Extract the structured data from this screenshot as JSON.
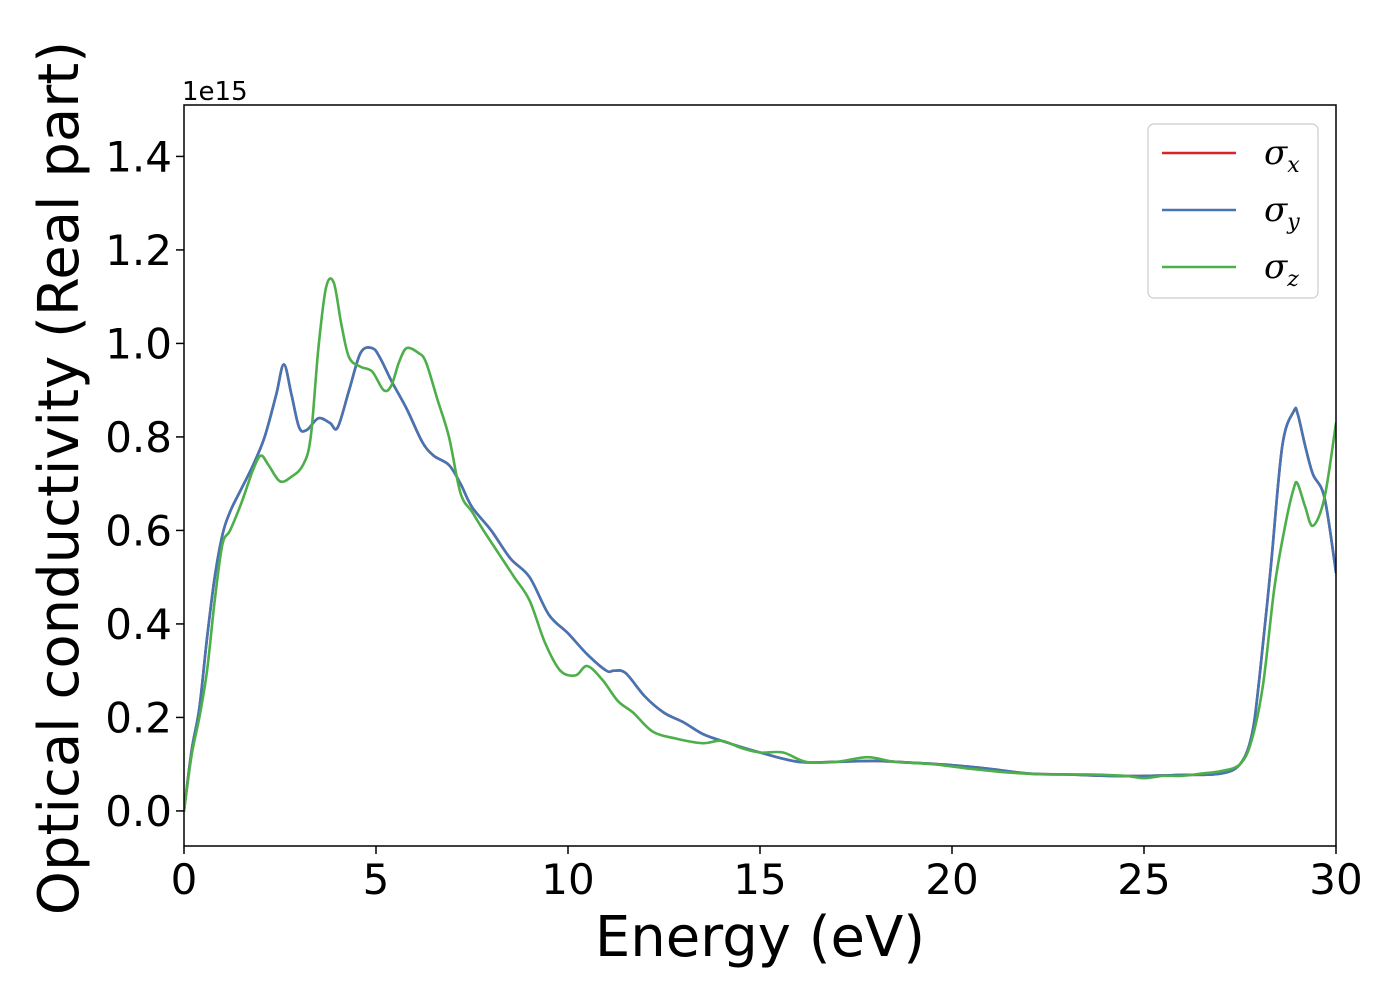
{
  "chart_data": {
    "type": "line",
    "xlabel": "Energy (eV)",
    "ylabel": "Optical conductivity (Real part)",
    "y_offset_text": "1e15",
    "xlim": [
      0,
      30
    ],
    "ylim": [
      -0.075,
      1.51
    ],
    "x_ticks": [
      0,
      5,
      10,
      15,
      20,
      25,
      30
    ],
    "x_tick_labels": [
      "0",
      "5",
      "10",
      "15",
      "20",
      "25",
      "30"
    ],
    "y_ticks": [
      0.0,
      0.2,
      0.4,
      0.6,
      0.8,
      1.0,
      1.2,
      1.4
    ],
    "y_tick_labels": [
      "0.0",
      "0.2",
      "0.4",
      "0.6",
      "0.8",
      "1.0",
      "1.2",
      "1.4"
    ],
    "grid": false,
    "legend_position": "top-right",
    "series": [
      {
        "name": "σx",
        "symbol": "σ",
        "subscript": "x",
        "color": "#d62728",
        "x": [
          0,
          0.2,
          0.4,
          0.6,
          0.8,
          1.0,
          1.2,
          1.5,
          1.8,
          2.1,
          2.4,
          2.6,
          2.8,
          3.0,
          3.2,
          3.5,
          3.8,
          4.0,
          4.3,
          4.6,
          4.9,
          5.1,
          5.4,
          5.8,
          6.2,
          6.5,
          6.9,
          7.2,
          7.5,
          8.0,
          8.5,
          9.0,
          9.5,
          10.0,
          10.5,
          11.0,
          11.2,
          11.5,
          12.0,
          12.5,
          13.0,
          13.5,
          14.0,
          15.0,
          16.0,
          17.0,
          18.0,
          19.0,
          20.0,
          21.0,
          22.0,
          23.0,
          24.0,
          25.0,
          26.0,
          27.0,
          27.5,
          27.8,
          28.0,
          28.3,
          28.6,
          28.9,
          29.0,
          29.2,
          29.4,
          29.7,
          30.0
        ],
        "y": [
          0.0,
          0.13,
          0.22,
          0.37,
          0.5,
          0.59,
          0.64,
          0.69,
          0.74,
          0.8,
          0.89,
          0.955,
          0.89,
          0.82,
          0.815,
          0.84,
          0.83,
          0.82,
          0.9,
          0.98,
          0.99,
          0.97,
          0.92,
          0.86,
          0.79,
          0.76,
          0.74,
          0.7,
          0.65,
          0.6,
          0.54,
          0.5,
          0.42,
          0.38,
          0.335,
          0.3,
          0.3,
          0.295,
          0.245,
          0.21,
          0.19,
          0.165,
          0.15,
          0.125,
          0.105,
          0.105,
          0.107,
          0.103,
          0.098,
          0.09,
          0.08,
          0.078,
          0.075,
          0.075,
          0.077,
          0.08,
          0.1,
          0.16,
          0.28,
          0.52,
          0.78,
          0.855,
          0.85,
          0.78,
          0.72,
          0.67,
          0.51
        ]
      },
      {
        "name": "σy",
        "symbol": "σ",
        "subscript": "y",
        "color": "#4575b4",
        "x": [
          0,
          0.2,
          0.4,
          0.6,
          0.8,
          1.0,
          1.2,
          1.5,
          1.8,
          2.1,
          2.4,
          2.6,
          2.8,
          3.0,
          3.2,
          3.5,
          3.8,
          4.0,
          4.3,
          4.6,
          4.9,
          5.1,
          5.4,
          5.8,
          6.2,
          6.5,
          6.9,
          7.2,
          7.5,
          8.0,
          8.5,
          9.0,
          9.5,
          10.0,
          10.5,
          11.0,
          11.2,
          11.5,
          12.0,
          12.5,
          13.0,
          13.5,
          14.0,
          15.0,
          16.0,
          17.0,
          18.0,
          19.0,
          20.0,
          21.0,
          22.0,
          23.0,
          24.0,
          25.0,
          26.0,
          27.0,
          27.5,
          27.8,
          28.0,
          28.3,
          28.6,
          28.9,
          29.0,
          29.2,
          29.4,
          29.7,
          30.0
        ],
        "y": [
          0.0,
          0.13,
          0.22,
          0.37,
          0.5,
          0.59,
          0.64,
          0.69,
          0.74,
          0.8,
          0.89,
          0.955,
          0.89,
          0.82,
          0.815,
          0.84,
          0.83,
          0.82,
          0.9,
          0.98,
          0.99,
          0.97,
          0.92,
          0.86,
          0.79,
          0.76,
          0.74,
          0.7,
          0.65,
          0.6,
          0.54,
          0.5,
          0.42,
          0.38,
          0.335,
          0.3,
          0.3,
          0.295,
          0.245,
          0.21,
          0.19,
          0.165,
          0.15,
          0.125,
          0.105,
          0.105,
          0.107,
          0.103,
          0.098,
          0.09,
          0.08,
          0.078,
          0.075,
          0.075,
          0.077,
          0.08,
          0.1,
          0.16,
          0.28,
          0.52,
          0.78,
          0.855,
          0.85,
          0.78,
          0.72,
          0.67,
          0.51
        ]
      },
      {
        "name": "σz",
        "symbol": "σ",
        "subscript": "z",
        "color": "#4daf4a",
        "x": [
          0,
          0.2,
          0.4,
          0.6,
          0.8,
          1.0,
          1.2,
          1.5,
          1.8,
          2.0,
          2.2,
          2.5,
          2.8,
          3.1,
          3.3,
          3.5,
          3.7,
          3.9,
          4.1,
          4.3,
          4.6,
          4.9,
          5.2,
          5.4,
          5.6,
          5.8,
          6.1,
          6.3,
          6.6,
          6.9,
          7.2,
          7.5,
          7.8,
          8.2,
          8.6,
          9.0,
          9.4,
          9.8,
          10.2,
          10.5,
          10.9,
          11.3,
          11.7,
          12.2,
          12.8,
          13.5,
          14.0,
          14.5,
          15.0,
          15.6,
          16.2,
          17.0,
          17.8,
          18.5,
          19.5,
          20.5,
          21.5,
          22.5,
          23.5,
          24.5,
          25.0,
          25.5,
          26.0,
          26.5,
          27.0,
          27.5,
          27.8,
          28.1,
          28.4,
          28.7,
          28.9,
          29.0,
          29.2,
          29.4,
          29.7,
          30.0
        ],
        "y": [
          0.0,
          0.12,
          0.2,
          0.3,
          0.45,
          0.57,
          0.6,
          0.66,
          0.73,
          0.76,
          0.74,
          0.705,
          0.715,
          0.74,
          0.8,
          0.99,
          1.12,
          1.13,
          1.04,
          0.97,
          0.95,
          0.94,
          0.9,
          0.91,
          0.96,
          0.99,
          0.98,
          0.96,
          0.88,
          0.8,
          0.68,
          0.64,
          0.6,
          0.55,
          0.5,
          0.45,
          0.36,
          0.3,
          0.29,
          0.31,
          0.28,
          0.235,
          0.21,
          0.17,
          0.155,
          0.145,
          0.15,
          0.135,
          0.125,
          0.125,
          0.105,
          0.105,
          0.115,
          0.105,
          0.1,
          0.09,
          0.082,
          0.078,
          0.078,
          0.075,
          0.07,
          0.075,
          0.075,
          0.08,
          0.085,
          0.1,
          0.15,
          0.27,
          0.48,
          0.62,
          0.69,
          0.7,
          0.65,
          0.61,
          0.67,
          0.83
        ]
      }
    ]
  }
}
